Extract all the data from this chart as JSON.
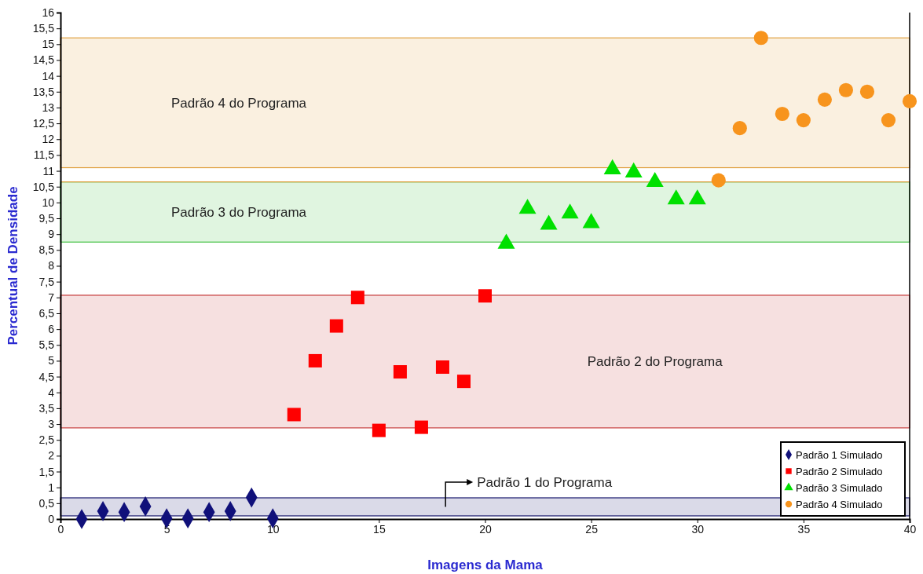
{
  "chart_data": {
    "type": "scatter",
    "xlabel": "Imagens da Mama",
    "ylabel": "Percentual de Densidade",
    "xlim": [
      0,
      40
    ],
    "xticks": [
      0,
      5,
      10,
      15,
      20,
      25,
      30,
      35,
      40
    ],
    "ylim": [
      0,
      16
    ],
    "yticks": [
      0,
      {
        "value": 0.5,
        "label": "0,5"
      },
      1,
      {
        "value": 1.5,
        "label": "1,5"
      },
      2,
      {
        "value": 2.5,
        "label": "2,5"
      },
      3,
      {
        "value": 3.5,
        "label": "3,5"
      },
      4,
      {
        "value": 4.5,
        "label": "4,5"
      },
      5,
      {
        "value": 5.5,
        "label": "5,5"
      },
      6,
      {
        "value": 6.5,
        "label": "6,5"
      },
      7,
      {
        "value": 7.5,
        "label": "7,5"
      },
      8,
      {
        "value": 8.5,
        "label": "8,5"
      },
      9,
      {
        "value": 9.5,
        "label": "9,5"
      },
      10,
      {
        "value": 10.5,
        "label": "10,5"
      },
      11,
      {
        "value": 11.5,
        "label": "11,5"
      },
      12,
      {
        "value": 12.5,
        "label": "12,5"
      },
      13,
      {
        "value": 13.5,
        "label": "13,5"
      },
      14,
      {
        "value": 14.5,
        "label": "14,5"
      },
      15,
      {
        "value": 15.5,
        "label": "15,5"
      },
      16
    ],
    "grid": false,
    "legend": "bottom right",
    "bands": [
      {
        "axis": "y",
        "from": 0.1,
        "to": 0.67,
        "color": "#1a1a6e",
        "label": "Padrão 1 do Programa"
      },
      {
        "axis": "y",
        "from": 2.88,
        "to": 7.07,
        "color": "#c84040",
        "label": "Padrão 2 do Programa"
      },
      {
        "axis": "y",
        "from": 8.75,
        "to": 10.65,
        "color": "#40c040",
        "label": "Padrão 3 do Programa"
      },
      {
        "axis": "y",
        "from": 11.1,
        "to": 15.2,
        "color": "#e0a040",
        "label": "Padrão 4 do Programa"
      }
    ],
    "ref_lines": [
      {
        "axis": "y",
        "value": 10.65,
        "color": "#e0a040"
      }
    ],
    "series": [
      {
        "name": "Padrão 1 Simulado",
        "color": "#10107a",
        "marker": "diamond",
        "x": [
          1,
          2,
          3,
          4,
          5,
          6,
          7,
          8,
          9,
          10
        ],
        "values": [
          0,
          0.25,
          0.22,
          0.4,
          0.02,
          0.02,
          0.22,
          0.25,
          0.68,
          0.02
        ]
      },
      {
        "name": "Padrão 2 Simulado",
        "color": "#ff0000",
        "marker": "square",
        "x": [
          11,
          12,
          13,
          14,
          15,
          16,
          17,
          18,
          19,
          20
        ],
        "values": [
          3.3,
          5,
          6.1,
          7,
          2.8,
          4.65,
          2.9,
          4.8,
          4.35,
          7.05
        ]
      },
      {
        "name": "Padrão 3 Simulado",
        "color": "#00e000",
        "marker": "triangle",
        "x": [
          21,
          22,
          23,
          24,
          25,
          26,
          27,
          28,
          29,
          30
        ],
        "values": [
          8.7,
          9.8,
          9.3,
          9.65,
          9.35,
          11.05,
          10.95,
          10.65,
          10.1,
          10.1
        ]
      },
      {
        "name": "Padrão 4 Simulado",
        "color": "#f7941d",
        "marker": "circle",
        "x": [
          31,
          32,
          33,
          34,
          35,
          36,
          37,
          38,
          39,
          40
        ],
        "values": [
          10.7,
          12.35,
          15.2,
          12.8,
          12.6,
          13.25,
          13.55,
          13.5,
          12.6,
          13.2
        ]
      }
    ]
  }
}
